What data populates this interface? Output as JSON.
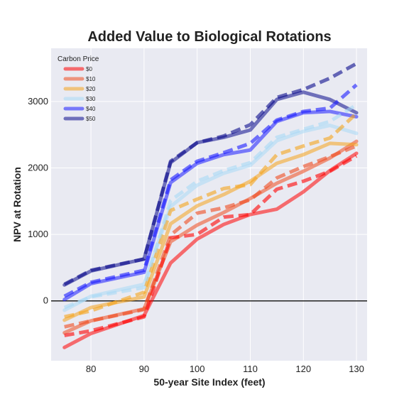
{
  "chart_data": {
    "type": "line",
    "title": "Added Value to Biological Rotations",
    "xlabel": "50-year Site Index (feet)",
    "ylabel": "NPV at Rotation",
    "xlim": [
      72.5,
      132
    ],
    "ylim": [
      -900,
      3800
    ],
    "xticks": [
      80,
      90,
      100,
      110,
      120,
      130
    ],
    "yticks": [
      0,
      1000,
      2000,
      3000
    ],
    "grid": true,
    "zero_line": true,
    "legend": {
      "title": "Carbon Price",
      "placement": "top-left"
    },
    "x": [
      75,
      80,
      90,
      95,
      100,
      105,
      110,
      115,
      120,
      125,
      130
    ],
    "series": [
      {
        "name": "$0",
        "color": "#ff0000",
        "solid": [
          -700,
          -490,
          -220,
          570,
          930,
          1150,
          1300,
          1380,
          1640,
          1960,
          2220
        ],
        "dashed": [
          -520,
          -450,
          -240,
          950,
          1000,
          1260,
          1300,
          1680,
          1800,
          1950,
          2180
        ]
      },
      {
        "name": "$10",
        "color": "#f04a1e",
        "solid": [
          -480,
          -300,
          -120,
          890,
          1140,
          1330,
          1540,
          1770,
          1950,
          2150,
          2400
        ],
        "dashed": [
          -390,
          -300,
          -130,
          990,
          1320,
          1400,
          1520,
          1850,
          2020,
          2170,
          2330
        ]
      },
      {
        "name": "$20",
        "color": "#f5a31b",
        "solid": [
          -290,
          -100,
          60,
          1160,
          1430,
          1600,
          1800,
          2070,
          2200,
          2370,
          2350
        ],
        "dashed": [
          -240,
          -150,
          130,
          1360,
          1530,
          1690,
          1750,
          2200,
          2330,
          2450,
          2820
        ]
      },
      {
        "name": "$30",
        "color": "#a9d8f5",
        "solid": [
          -140,
          70,
          250,
          1420,
          1740,
          1920,
          2040,
          2410,
          2550,
          2640,
          2520
        ],
        "dashed": [
          -100,
          60,
          200,
          1510,
          1800,
          1960,
          2080,
          2460,
          2580,
          2700,
          2950
        ]
      },
      {
        "name": "$40",
        "color": "#1a1aff",
        "solid": [
          20,
          260,
          430,
          1780,
          2070,
          2200,
          2270,
          2700,
          2830,
          2850,
          2770
        ],
        "dashed": [
          70,
          280,
          460,
          1820,
          2100,
          2230,
          2370,
          2720,
          2850,
          2900,
          3250
        ]
      },
      {
        "name": "$50",
        "color": "#0a0a8c",
        "solid": [
          240,
          450,
          630,
          2080,
          2380,
          2460,
          2570,
          3030,
          3140,
          3030,
          2830
        ],
        "dashed": [
          250,
          460,
          630,
          2100,
          2380,
          2480,
          2650,
          3060,
          3180,
          3350,
          3570
        ]
      }
    ]
  }
}
